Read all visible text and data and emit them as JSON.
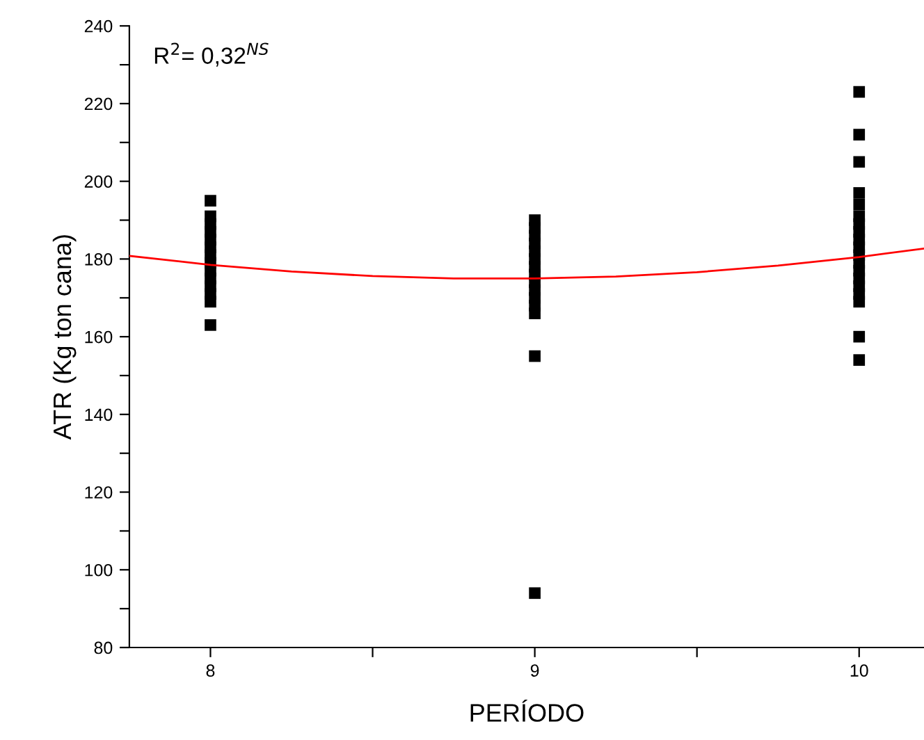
{
  "chart_data": {
    "type": "scatter",
    "xlabel": "PERÍODO",
    "ylabel": "ATR (Kg ton cana)",
    "annotations": [
      "R$^{2}$= 0,32$^{NS}$"
    ],
    "xlim": [
      7.75,
      10.2
    ],
    "xticks": [
      8,
      {
        "value": 8.5,
        "label": null
      },
      9,
      {
        "value": 9.5,
        "label": null
      },
      10
    ],
    "ylim": [
      80,
      240
    ],
    "yticks": [
      80,
      {
        "value": 90,
        "label": null
      },
      100,
      {
        "value": 110,
        "label": null
      },
      120,
      {
        "value": 130,
        "label": null
      },
      140,
      {
        "value": 150,
        "label": null
      },
      160,
      {
        "value": 170,
        "label": null
      },
      180,
      {
        "value": 190,
        "label": null
      },
      200,
      {
        "value": 210,
        "label": null
      },
      220,
      {
        "value": 230,
        "label": null
      },
      240
    ],
    "grid": false,
    "series": [
      {
        "color": "#000000",
        "marker": "square",
        "x": [
          8,
          8,
          8,
          8,
          8,
          8,
          8,
          8,
          8,
          8,
          8,
          8,
          8,
          8,
          9,
          9,
          9,
          9,
          9,
          9,
          9,
          9,
          9,
          9,
          9,
          9,
          9,
          9,
          9,
          10,
          10,
          10,
          10,
          10,
          10,
          10,
          10,
          10,
          10,
          10,
          10,
          10,
          10,
          10,
          10,
          10,
          10,
          10
        ],
        "values": [
          195,
          191,
          189,
          187,
          185,
          183,
          181,
          179,
          177,
          175,
          173,
          171,
          169,
          163,
          190,
          188,
          186,
          184,
          182,
          180,
          178,
          176,
          174,
          172,
          170,
          168,
          166,
          155,
          94,
          223,
          212,
          205,
          197,
          194,
          191,
          189,
          187,
          185,
          183,
          181,
          179,
          177,
          175,
          173,
          171,
          169,
          160,
          154
        ]
      },
      {
        "type": "line",
        "color": "#ff0000",
        "marker": "none",
        "line_style": "solid",
        "x": [
          7.75,
          8,
          8.25,
          8.5,
          8.75,
          9,
          9.25,
          9.5,
          9.75,
          10,
          10.2
        ],
        "values": [
          180.8,
          178.5,
          176.8,
          175.6,
          175.0,
          175.0,
          175.5,
          176.6,
          178.3,
          180.5,
          182.7
        ]
      }
    ]
  }
}
